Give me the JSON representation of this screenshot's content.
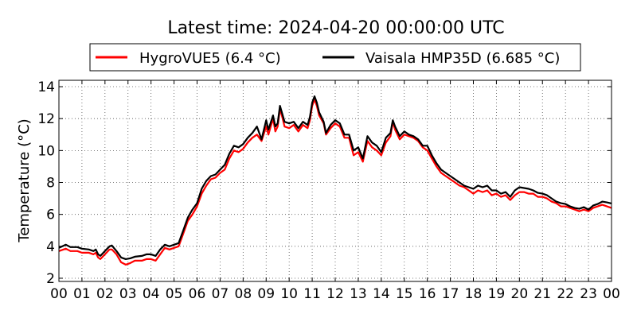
{
  "chart_data": {
    "type": "line",
    "title": "Latest time: 2024-04-20 00:00:00 UTC",
    "ylabel": "Temperature (°C)",
    "xlabel": "",
    "xlim": [
      0,
      24
    ],
    "ylim": [
      1.8,
      14.4
    ],
    "grid": true,
    "legend_position": "top",
    "x_ticks": [
      {
        "value": 0,
        "label": "00"
      },
      {
        "value": 1,
        "label": "01"
      },
      {
        "value": 2,
        "label": "02"
      },
      {
        "value": 3,
        "label": "03"
      },
      {
        "value": 4,
        "label": "04"
      },
      {
        "value": 5,
        "label": "05"
      },
      {
        "value": 6,
        "label": "06"
      },
      {
        "value": 7,
        "label": "07"
      },
      {
        "value": 8,
        "label": "08"
      },
      {
        "value": 9,
        "label": "09"
      },
      {
        "value": 10,
        "label": "10"
      },
      {
        "value": 11,
        "label": "11"
      },
      {
        "value": 12,
        "label": "12"
      },
      {
        "value": 13,
        "label": "13"
      },
      {
        "value": 14,
        "label": "14"
      },
      {
        "value": 15,
        "label": "15"
      },
      {
        "value": 16,
        "label": "16"
      },
      {
        "value": 17,
        "label": "17"
      },
      {
        "value": 18,
        "label": "18"
      },
      {
        "value": 19,
        "label": "19"
      },
      {
        "value": 20,
        "label": "20"
      },
      {
        "value": 21,
        "label": "21"
      },
      {
        "value": 22,
        "label": "22"
      },
      {
        "value": 23,
        "label": "23"
      },
      {
        "value": 24,
        "label": "00"
      }
    ],
    "y_ticks": [
      {
        "value": 2,
        "label": "2"
      },
      {
        "value": 4,
        "label": "4"
      },
      {
        "value": 6,
        "label": "6"
      },
      {
        "value": 8,
        "label": "8"
      },
      {
        "value": 10,
        "label": "10"
      },
      {
        "value": 12,
        "label": "12"
      },
      {
        "value": 14,
        "label": "14"
      }
    ],
    "series": [
      {
        "name": "HygroVUE5 (6.4 °C)",
        "color": "#ff0000",
        "points": [
          [
            0.0,
            3.7
          ],
          [
            0.3,
            3.85
          ],
          [
            0.5,
            3.7
          ],
          [
            0.8,
            3.7
          ],
          [
            1.0,
            3.6
          ],
          [
            1.3,
            3.6
          ],
          [
            1.5,
            3.5
          ],
          [
            1.6,
            3.6
          ],
          [
            1.7,
            3.3
          ],
          [
            1.8,
            3.2
          ],
          [
            2.0,
            3.5
          ],
          [
            2.2,
            3.8
          ],
          [
            2.3,
            3.8
          ],
          [
            2.5,
            3.5
          ],
          [
            2.7,
            3.0
          ],
          [
            2.9,
            2.85
          ],
          [
            3.1,
            2.95
          ],
          [
            3.3,
            3.1
          ],
          [
            3.6,
            3.1
          ],
          [
            3.8,
            3.2
          ],
          [
            4.0,
            3.2
          ],
          [
            4.2,
            3.1
          ],
          [
            4.4,
            3.5
          ],
          [
            4.6,
            3.9
          ],
          [
            4.8,
            3.8
          ],
          [
            5.0,
            3.9
          ],
          [
            5.2,
            4.0
          ],
          [
            5.4,
            4.8
          ],
          [
            5.6,
            5.6
          ],
          [
            5.8,
            6.0
          ],
          [
            6.0,
            6.5
          ],
          [
            6.2,
            7.3
          ],
          [
            6.4,
            7.8
          ],
          [
            6.6,
            8.2
          ],
          [
            6.8,
            8.3
          ],
          [
            7.0,
            8.6
          ],
          [
            7.2,
            8.8
          ],
          [
            7.4,
            9.5
          ],
          [
            7.6,
            10.0
          ],
          [
            7.8,
            9.9
          ],
          [
            8.0,
            10.1
          ],
          [
            8.2,
            10.5
          ],
          [
            8.4,
            10.8
          ],
          [
            8.6,
            11.0
          ],
          [
            8.8,
            10.6
          ],
          [
            9.0,
            11.5
          ],
          [
            9.1,
            11.0
          ],
          [
            9.3,
            12.0
          ],
          [
            9.4,
            11.2
          ],
          [
            9.5,
            11.5
          ],
          [
            9.6,
            12.6
          ],
          [
            9.7,
            12.1
          ],
          [
            9.8,
            11.5
          ],
          [
            10.0,
            11.4
          ],
          [
            10.2,
            11.6
          ],
          [
            10.4,
            11.2
          ],
          [
            10.6,
            11.6
          ],
          [
            10.8,
            11.4
          ],
          [
            10.9,
            11.9
          ],
          [
            11.0,
            12.8
          ],
          [
            11.1,
            13.2
          ],
          [
            11.2,
            12.8
          ],
          [
            11.3,
            12.2
          ],
          [
            11.5,
            11.7
          ],
          [
            11.6,
            11.0
          ],
          [
            11.8,
            11.4
          ],
          [
            12.0,
            11.7
          ],
          [
            12.2,
            11.5
          ],
          [
            12.4,
            10.8
          ],
          [
            12.6,
            10.8
          ],
          [
            12.8,
            9.7
          ],
          [
            13.0,
            9.9
          ],
          [
            13.2,
            9.3
          ],
          [
            13.4,
            10.6
          ],
          [
            13.6,
            10.2
          ],
          [
            13.8,
            10.0
          ],
          [
            14.0,
            9.7
          ],
          [
            14.2,
            10.5
          ],
          [
            14.4,
            10.9
          ],
          [
            14.5,
            11.8
          ],
          [
            14.6,
            11.3
          ],
          [
            14.8,
            10.7
          ],
          [
            15.0,
            11.0
          ],
          [
            15.2,
            10.9
          ],
          [
            15.4,
            10.8
          ],
          [
            15.6,
            10.6
          ],
          [
            15.8,
            10.2
          ],
          [
            16.0,
            10.0
          ],
          [
            16.2,
            9.5
          ],
          [
            16.4,
            9.0
          ],
          [
            16.6,
            8.6
          ],
          [
            16.8,
            8.4
          ],
          [
            17.0,
            8.2
          ],
          [
            17.2,
            8.0
          ],
          [
            17.4,
            7.8
          ],
          [
            17.6,
            7.7
          ],
          [
            17.8,
            7.5
          ],
          [
            18.0,
            7.3
          ],
          [
            18.2,
            7.5
          ],
          [
            18.4,
            7.4
          ],
          [
            18.6,
            7.5
          ],
          [
            18.8,
            7.2
          ],
          [
            19.0,
            7.3
          ],
          [
            19.2,
            7.1
          ],
          [
            19.4,
            7.2
          ],
          [
            19.6,
            6.9
          ],
          [
            19.8,
            7.2
          ],
          [
            20.0,
            7.4
          ],
          [
            20.2,
            7.4
          ],
          [
            20.4,
            7.3
          ],
          [
            20.6,
            7.3
          ],
          [
            20.8,
            7.1
          ],
          [
            21.0,
            7.1
          ],
          [
            21.2,
            7.0
          ],
          [
            21.4,
            6.8
          ],
          [
            21.6,
            6.7
          ],
          [
            21.8,
            6.5
          ],
          [
            22.0,
            6.5
          ],
          [
            22.2,
            6.4
          ],
          [
            22.4,
            6.3
          ],
          [
            22.6,
            6.2
          ],
          [
            22.8,
            6.3
          ],
          [
            23.0,
            6.2
          ],
          [
            23.2,
            6.4
          ],
          [
            23.4,
            6.5
          ],
          [
            23.6,
            6.6
          ],
          [
            23.8,
            6.5
          ],
          [
            24.0,
            6.4
          ]
        ]
      },
      {
        "name": "Vaisala HMP35D (6.685 °C)",
        "color": "#000000",
        "points": [
          [
            0.0,
            3.9
          ],
          [
            0.3,
            4.1
          ],
          [
            0.5,
            3.95
          ],
          [
            0.8,
            3.95
          ],
          [
            1.0,
            3.85
          ],
          [
            1.3,
            3.8
          ],
          [
            1.5,
            3.7
          ],
          [
            1.6,
            3.8
          ],
          [
            1.7,
            3.5
          ],
          [
            1.8,
            3.4
          ],
          [
            2.0,
            3.7
          ],
          [
            2.2,
            4.0
          ],
          [
            2.3,
            4.05
          ],
          [
            2.5,
            3.7
          ],
          [
            2.7,
            3.3
          ],
          [
            2.9,
            3.2
          ],
          [
            3.1,
            3.25
          ],
          [
            3.3,
            3.35
          ],
          [
            3.6,
            3.4
          ],
          [
            3.8,
            3.5
          ],
          [
            4.0,
            3.5
          ],
          [
            4.2,
            3.4
          ],
          [
            4.4,
            3.8
          ],
          [
            4.6,
            4.1
          ],
          [
            4.8,
            4.0
          ],
          [
            5.0,
            4.1
          ],
          [
            5.2,
            4.2
          ],
          [
            5.4,
            5.0
          ],
          [
            5.6,
            5.8
          ],
          [
            5.8,
            6.3
          ],
          [
            6.0,
            6.7
          ],
          [
            6.2,
            7.6
          ],
          [
            6.4,
            8.1
          ],
          [
            6.6,
            8.4
          ],
          [
            6.8,
            8.5
          ],
          [
            7.0,
            8.8
          ],
          [
            7.2,
            9.1
          ],
          [
            7.4,
            9.8
          ],
          [
            7.6,
            10.3
          ],
          [
            7.8,
            10.2
          ],
          [
            8.0,
            10.4
          ],
          [
            8.2,
            10.8
          ],
          [
            8.4,
            11.1
          ],
          [
            8.6,
            11.5
          ],
          [
            8.8,
            10.7
          ],
          [
            9.0,
            11.9
          ],
          [
            9.1,
            11.3
          ],
          [
            9.3,
            12.2
          ],
          [
            9.4,
            11.5
          ],
          [
            9.5,
            11.7
          ],
          [
            9.6,
            12.8
          ],
          [
            9.7,
            12.3
          ],
          [
            9.8,
            11.8
          ],
          [
            10.0,
            11.7
          ],
          [
            10.2,
            11.8
          ],
          [
            10.4,
            11.4
          ],
          [
            10.6,
            11.8
          ],
          [
            10.8,
            11.6
          ],
          [
            10.9,
            12.1
          ],
          [
            11.0,
            13.0
          ],
          [
            11.1,
            13.4
          ],
          [
            11.2,
            13.0
          ],
          [
            11.3,
            12.4
          ],
          [
            11.5,
            11.8
          ],
          [
            11.6,
            11.1
          ],
          [
            11.8,
            11.6
          ],
          [
            12.0,
            11.9
          ],
          [
            12.2,
            11.7
          ],
          [
            12.4,
            11.0
          ],
          [
            12.6,
            11.0
          ],
          [
            12.8,
            10.0
          ],
          [
            13.0,
            10.2
          ],
          [
            13.2,
            9.5
          ],
          [
            13.4,
            10.9
          ],
          [
            13.6,
            10.5
          ],
          [
            13.8,
            10.3
          ],
          [
            14.0,
            9.9
          ],
          [
            14.2,
            10.8
          ],
          [
            14.4,
            11.1
          ],
          [
            14.5,
            11.9
          ],
          [
            14.6,
            11.5
          ],
          [
            14.8,
            10.9
          ],
          [
            15.0,
            11.2
          ],
          [
            15.2,
            11.0
          ],
          [
            15.4,
            10.9
          ],
          [
            15.6,
            10.7
          ],
          [
            15.8,
            10.3
          ],
          [
            16.0,
            10.3
          ],
          [
            16.2,
            9.7
          ],
          [
            16.4,
            9.2
          ],
          [
            16.6,
            8.8
          ],
          [
            16.8,
            8.6
          ],
          [
            17.0,
            8.4
          ],
          [
            17.2,
            8.2
          ],
          [
            17.4,
            8.0
          ],
          [
            17.6,
            7.8
          ],
          [
            17.8,
            7.7
          ],
          [
            18.0,
            7.6
          ],
          [
            18.2,
            7.8
          ],
          [
            18.4,
            7.7
          ],
          [
            18.6,
            7.8
          ],
          [
            18.8,
            7.5
          ],
          [
            19.0,
            7.5
          ],
          [
            19.2,
            7.3
          ],
          [
            19.4,
            7.4
          ],
          [
            19.6,
            7.1
          ],
          [
            19.8,
            7.5
          ],
          [
            20.0,
            7.7
          ],
          [
            20.2,
            7.65
          ],
          [
            20.4,
            7.6
          ],
          [
            20.6,
            7.5
          ],
          [
            20.8,
            7.35
          ],
          [
            21.0,
            7.3
          ],
          [
            21.2,
            7.2
          ],
          [
            21.4,
            7.0
          ],
          [
            21.6,
            6.8
          ],
          [
            21.8,
            6.7
          ],
          [
            22.0,
            6.65
          ],
          [
            22.2,
            6.5
          ],
          [
            22.4,
            6.4
          ],
          [
            22.6,
            6.35
          ],
          [
            22.8,
            6.45
          ],
          [
            23.0,
            6.3
          ],
          [
            23.2,
            6.55
          ],
          [
            23.4,
            6.65
          ],
          [
            23.6,
            6.8
          ],
          [
            23.8,
            6.75
          ],
          [
            24.0,
            6.685
          ]
        ]
      }
    ]
  }
}
